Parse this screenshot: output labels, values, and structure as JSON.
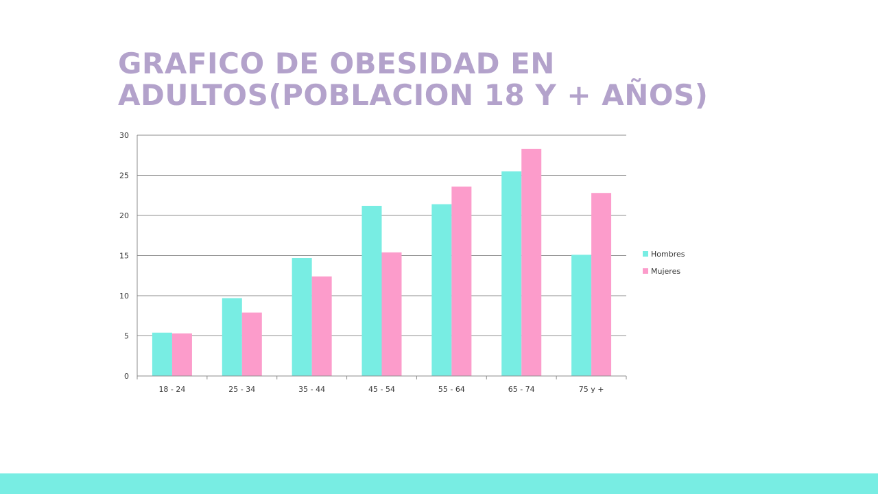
{
  "title_lines": [
    "GRAFICO DE OBESIDAD EN",
    "ADULTOS(POBLACION 18 Y + AÑOS)"
  ],
  "colors": {
    "title": "#b3a2cb",
    "hombres": "#78ede3",
    "mujeres": "#fc9ccb",
    "footer": "#78ede3",
    "grid": "#8c8c8c",
    "axis": "#8c8c8c"
  },
  "chart_data": {
    "type": "bar",
    "categories": [
      "18 - 24",
      "25 - 34",
      "35 - 44",
      "45 - 54",
      "55 - 64",
      "65 - 74",
      "75 y +"
    ],
    "series": [
      {
        "name": "Hombres",
        "values": [
          5.4,
          9.7,
          14.7,
          21.2,
          21.4,
          25.5,
          15.1
        ]
      },
      {
        "name": "Mujeres",
        "values": [
          5.3,
          7.9,
          12.4,
          15.4,
          23.6,
          28.3,
          22.8
        ]
      }
    ],
    "ylim": [
      0,
      30
    ],
    "yticks": [
      "0",
      "5",
      "10",
      "15",
      "20",
      "25",
      "30"
    ],
    "xlabel": "",
    "ylabel": "",
    "grid": true,
    "legend_position": "right"
  }
}
